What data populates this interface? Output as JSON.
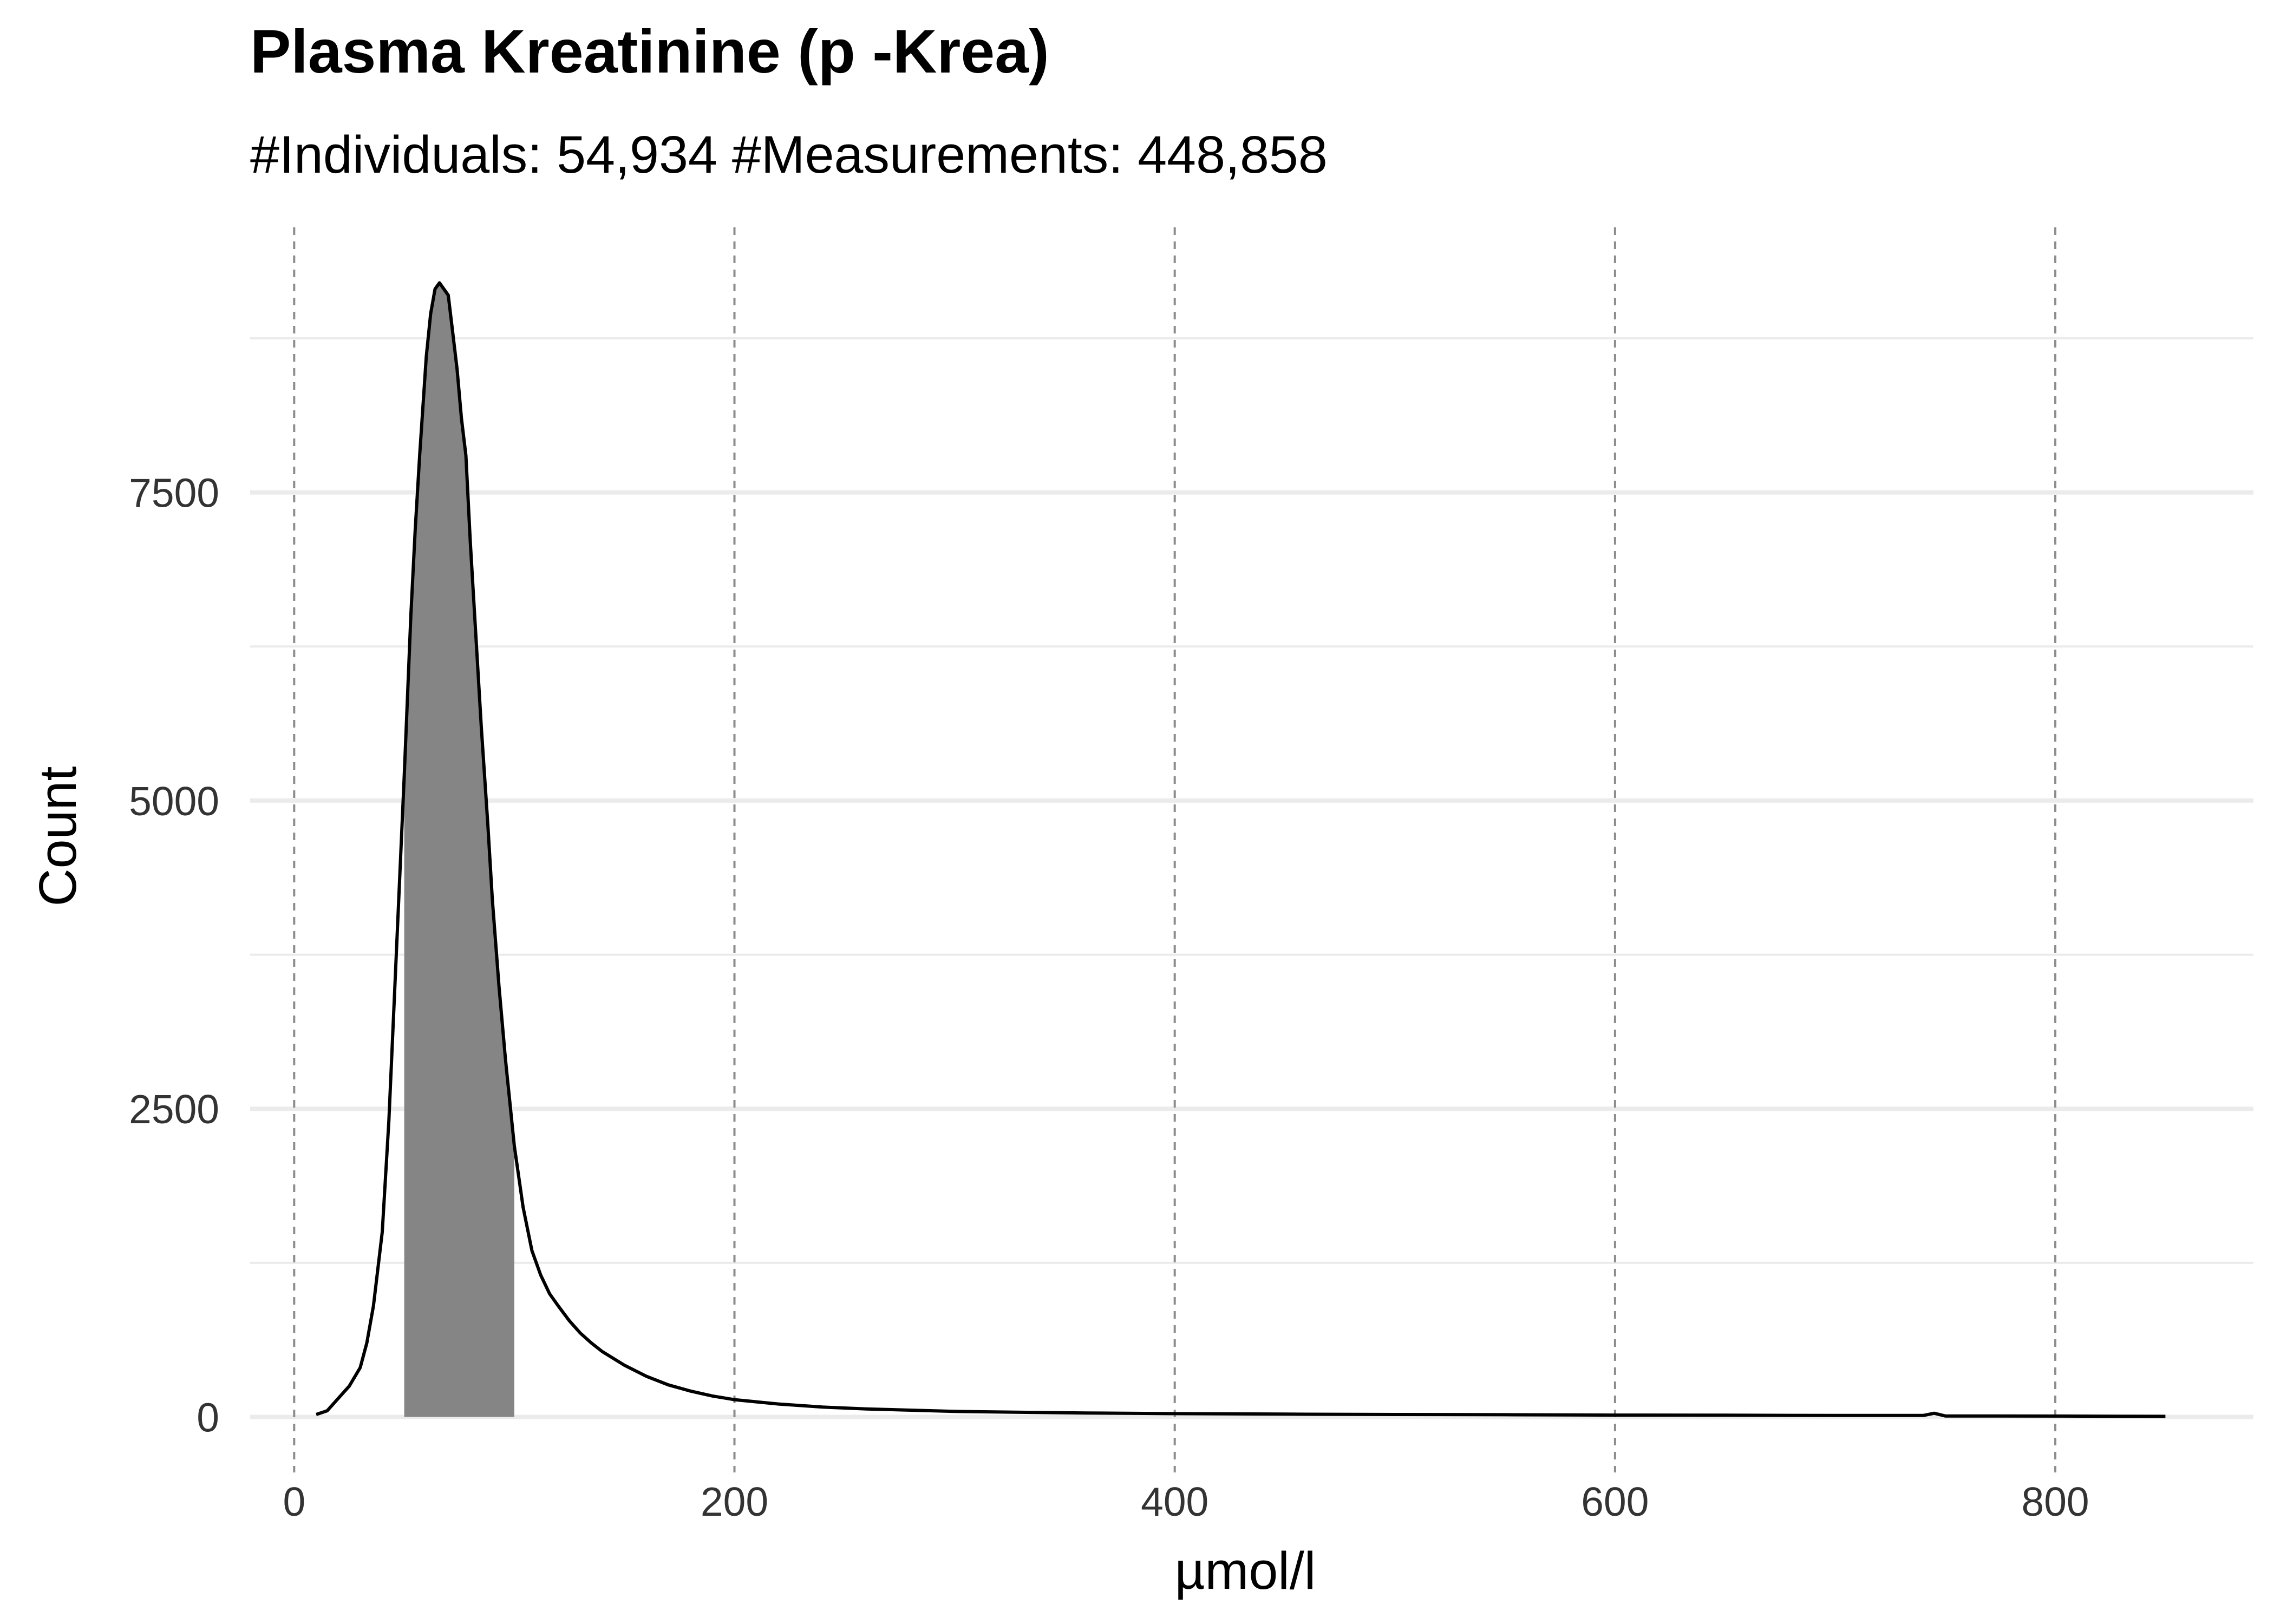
{
  "chart_data": {
    "type": "area",
    "title": "Plasma Kreatinine (p -Krea)",
    "subtitle": "#Individuals: 54,934 #Measurements: 448,858",
    "xlabel": "µmol/l",
    "ylabel": "Count",
    "xlim": [
      -20,
      890
    ],
    "ylim": [
      -450,
      9650
    ],
    "x_ticks": [
      0,
      200,
      400,
      600,
      800
    ],
    "y_ticks": [
      0,
      2500,
      5000,
      7500
    ],
    "y_minor_gridlines": [
      1250,
      3750,
      6250,
      8750
    ],
    "x_gridlines": "dashed",
    "grid": true,
    "legend": "none",
    "shaded_range": [
      50,
      100
    ],
    "colors": {
      "line": "#000000",
      "shade": "#858585",
      "grid": "#ebebeb",
      "vgrid": "#8c8c8c"
    },
    "x": [
      10,
      15,
      20,
      25,
      30,
      33,
      36,
      40,
      43,
      46,
      50,
      53,
      55,
      57,
      60,
      62,
      64,
      66,
      68,
      70,
      72,
      74,
      76,
      78,
      80,
      82,
      85,
      88,
      90,
      93,
      96,
      100,
      104,
      108,
      112,
      116,
      120,
      125,
      130,
      135,
      140,
      150,
      160,
      170,
      180,
      190,
      200,
      220,
      240,
      260,
      280,
      300,
      330,
      360,
      400,
      450,
      500,
      550,
      600,
      650,
      700,
      740,
      745,
      750,
      760,
      800,
      830,
      850
    ],
    "y": [
      20,
      50,
      150,
      250,
      400,
      600,
      900,
      1500,
      2400,
      3600,
      5200,
      6500,
      7200,
      7800,
      8600,
      8950,
      9150,
      9200,
      9150,
      9100,
      8800,
      8500,
      8100,
      7800,
      7100,
      6500,
      5600,
      4800,
      4200,
      3500,
      2900,
      2200,
      1700,
      1350,
      1150,
      1000,
      900,
      780,
      680,
      600,
      530,
      420,
      330,
      260,
      210,
      170,
      140,
      105,
      80,
      65,
      55,
      45,
      38,
      32,
      27,
      23,
      20,
      18,
      15,
      14,
      12,
      12,
      30,
      8,
      8,
      7,
      6,
      5
    ]
  }
}
